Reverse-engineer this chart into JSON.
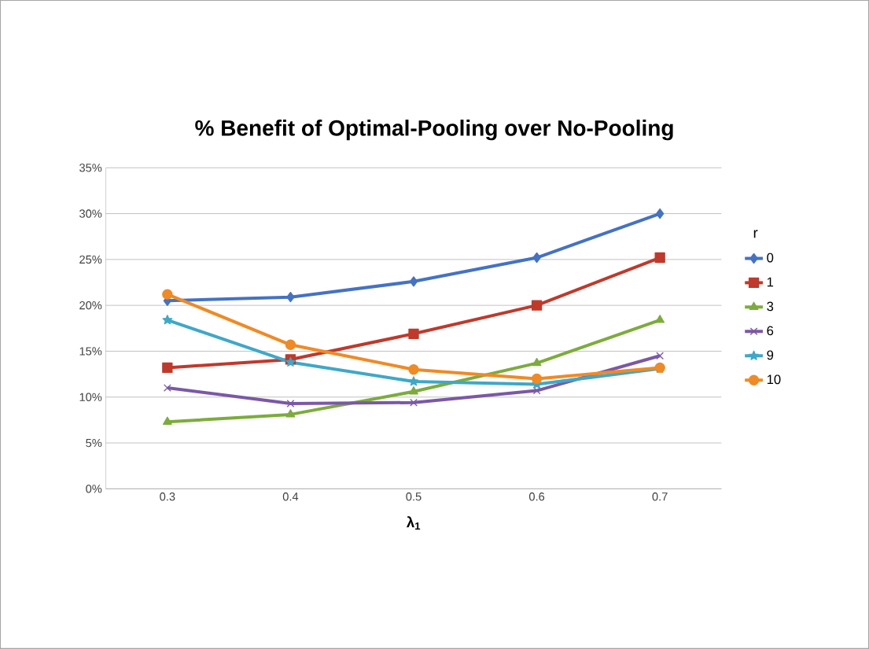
{
  "chart_data": {
    "type": "line",
    "title": "% Benefit of Optimal-Pooling over No-Pooling",
    "xlabel": "λ$_{1}$",
    "legend_title": "r",
    "categories": [
      "0.3",
      "0.4",
      "0.5",
      "0.6",
      "0.7"
    ],
    "series": [
      {
        "name": "0",
        "color": "#4472c4",
        "marker": "diamond",
        "values": [
          20.5,
          20.9,
          22.6,
          25.2,
          30.0
        ]
      },
      {
        "name": "1",
        "color": "#c0392b",
        "marker": "square",
        "values": [
          13.2,
          14.1,
          16.9,
          20.0,
          25.2
        ]
      },
      {
        "name": "3",
        "color": "#7cac3c",
        "marker": "triangle",
        "values": [
          7.3,
          8.1,
          10.6,
          13.7,
          18.4
        ]
      },
      {
        "name": "6",
        "color": "#7b58a6",
        "marker": "cross",
        "values": [
          11.0,
          9.3,
          9.4,
          10.7,
          14.5
        ]
      },
      {
        "name": "9",
        "color": "#3ea8c8",
        "marker": "star",
        "values": [
          18.4,
          13.8,
          11.7,
          11.4,
          13.1
        ]
      },
      {
        "name": "10",
        "color": "#f08a24",
        "marker": "circle",
        "values": [
          21.2,
          15.7,
          13.0,
          12.0,
          13.2
        ]
      }
    ],
    "ylim": [
      0,
      35
    ],
    "yticks": [
      {
        "value": 0,
        "label": "0%"
      },
      {
        "value": 5,
        "label": "5%"
      },
      {
        "value": 10,
        "label": "10%"
      },
      {
        "value": 15,
        "label": "15%"
      },
      {
        "value": 20,
        "label": "20%"
      },
      {
        "value": 25,
        "label": "25%"
      },
      {
        "value": 30,
        "label": "30%"
      },
      {
        "value": 35,
        "label": "35%"
      }
    ],
    "grid": "y",
    "legend": "right",
    "line_style": "solid"
  }
}
